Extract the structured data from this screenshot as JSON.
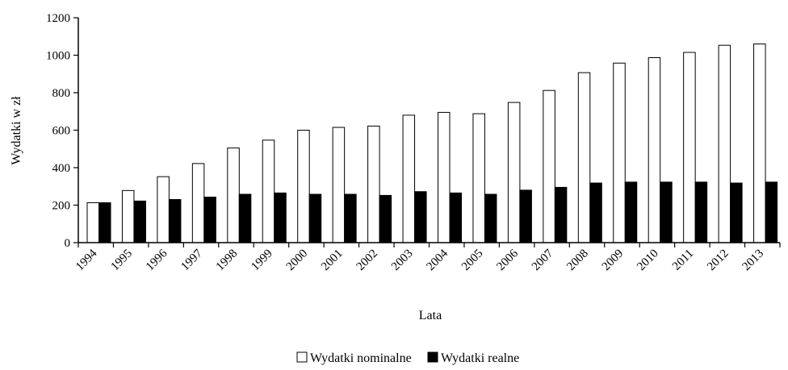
{
  "chart_data": {
    "type": "bar",
    "categories": [
      "1994",
      "1995",
      "1996",
      "1997",
      "1998",
      "1999",
      "2000",
      "2001",
      "2002",
      "2003",
      "2004",
      "2005",
      "2006",
      "2007",
      "2008",
      "2009",
      "2010",
      "2011",
      "2012",
      "2013"
    ],
    "series": [
      {
        "name": "Wydatki nominalne",
        "color": "#ffffff",
        "values": [
          213,
          278,
          352,
          422,
          505,
          547,
          600,
          615,
          622,
          680,
          695,
          688,
          748,
          812,
          907,
          958,
          987,
          1015,
          1053,
          1060
        ]
      },
      {
        "name": "Wydatki realne",
        "color": "#000000",
        "values": [
          213,
          222,
          230,
          243,
          258,
          265,
          258,
          258,
          252,
          272,
          265,
          258,
          280,
          295,
          318,
          323,
          323,
          323,
          318,
          323
        ]
      }
    ],
    "xlabel": "Lata",
    "ylabel": "Wydatki w zł",
    "ylim": [
      0,
      1200
    ],
    "yticks": [
      0,
      200,
      400,
      600,
      800,
      1000,
      1200
    ],
    "legend_position": "bottom"
  }
}
